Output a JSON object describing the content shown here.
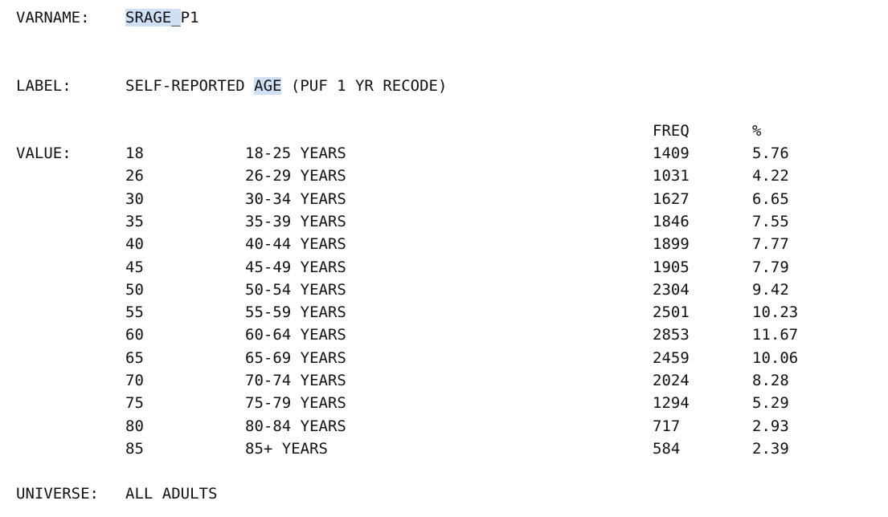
{
  "varname": {
    "label": "VARNAME:",
    "value_highlighted": "SRAGE_",
    "value_rest": "P1"
  },
  "label": {
    "label": "LABEL:",
    "text_before": "SELF-REPORTED ",
    "text_highlighted": "AGE",
    "text_after": " (PUF 1 YR RECODE)"
  },
  "headers": {
    "freq": "FREQ",
    "pct": "%"
  },
  "value": {
    "label": "VALUE:",
    "rows": [
      {
        "code": "18",
        "desc": "18-25 YEARS",
        "freq": "1409",
        "pct": "5.76"
      },
      {
        "code": "26",
        "desc": "26-29 YEARS",
        "freq": "1031",
        "pct": "4.22"
      },
      {
        "code": "30",
        "desc": "30-34 YEARS",
        "freq": "1627",
        "pct": "6.65"
      },
      {
        "code": "35",
        "desc": "35-39 YEARS",
        "freq": "1846",
        "pct": "7.55"
      },
      {
        "code": "40",
        "desc": "40-44 YEARS",
        "freq": "1899",
        "pct": "7.77"
      },
      {
        "code": "45",
        "desc": "45-49 YEARS",
        "freq": "1905",
        "pct": "7.79"
      },
      {
        "code": "50",
        "desc": "50-54 YEARS",
        "freq": "2304",
        "pct": "9.42"
      },
      {
        "code": "55",
        "desc": "55-59 YEARS",
        "freq": "2501",
        "pct": "10.23"
      },
      {
        "code": "60",
        "desc": "60-64 YEARS",
        "freq": "2853",
        "pct": "11.67"
      },
      {
        "code": "65",
        "desc": "65-69 YEARS",
        "freq": "2459",
        "pct": "10.06"
      },
      {
        "code": "70",
        "desc": "70-74 YEARS",
        "freq": "2024",
        "pct": "8.28"
      },
      {
        "code": "75",
        "desc": "75-79 YEARS",
        "freq": "1294",
        "pct": "5.29"
      },
      {
        "code": "80",
        "desc": "80-84 YEARS",
        "freq": "717",
        "pct": "2.93"
      },
      {
        "code": "85",
        "desc": "85+ YEARS",
        "freq": "584",
        "pct": "2.39"
      }
    ]
  },
  "universe": {
    "label": "UNIVERSE:",
    "value": "ALL ADULTS"
  }
}
